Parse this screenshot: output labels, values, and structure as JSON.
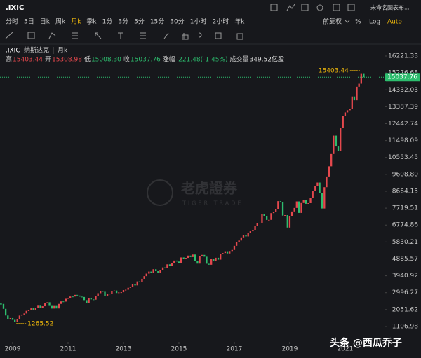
{
  "header": {
    "symbol": ".IXIC",
    "layout_name": "未命名图表布..."
  },
  "toolbar": {
    "periods": [
      "分时",
      "5日",
      "日k",
      "周k",
      "月k",
      "季k",
      "1分",
      "3分",
      "5分",
      "15分",
      "30分",
      "1小时",
      "2小时",
      "年k"
    ],
    "adjust": "前复权",
    "percent": "%",
    "log": "Log",
    "auto": "Auto"
  },
  "info": {
    "symbol": ".IXIC",
    "name": "纳斯达克",
    "period": "月k",
    "stats": [
      {
        "label": "高",
        "value": "15403.44",
        "color": "#e5484d"
      },
      {
        "label": "开",
        "value": "15308.98",
        "color": "#e5484d"
      },
      {
        "label": "低",
        "value": "15008.30",
        "color": "#2dbd6e"
      },
      {
        "label": "收",
        "value": "15037.76",
        "color": "#2dbd6e"
      },
      {
        "label": "涨幅",
        "value": "-221.48(-1.45%)",
        "color": "#2dbd6e"
      },
      {
        "label": "成交量",
        "value": "349.52亿股",
        "color": "#d8d8d8"
      }
    ]
  },
  "watermark": {
    "name": "老虎證券",
    "sub": "TIGER TRADE"
  },
  "credit": "头条 @西瓜乔子",
  "chart_data": {
    "type": "candlestick",
    "up_color": "#e5484d",
    "down_color": "#2dbd6e",
    "x": [
      2008.58,
      2008.67,
      2008.75,
      2008.83,
      2008.92,
      2009,
      2009.08,
      2009.17,
      2009.25,
      2009.33,
      2009.42,
      2009.5,
      2009.58,
      2009.67,
      2009.75,
      2009.83,
      2009.92,
      2010,
      2010.08,
      2010.17,
      2010.25,
      2010.33,
      2010.42,
      2010.5,
      2010.58,
      2010.67,
      2010.75,
      2010.83,
      2010.92,
      2011,
      2011.08,
      2011.17,
      2011.25,
      2011.33,
      2011.42,
      2011.5,
      2011.58,
      2011.67,
      2011.75,
      2011.83,
      2011.92,
      2012,
      2012.08,
      2012.17,
      2012.25,
      2012.33,
      2012.42,
      2012.5,
      2012.58,
      2012.67,
      2012.75,
      2012.83,
      2012.92,
      2013,
      2013.08,
      2013.17,
      2013.25,
      2013.33,
      2013.42,
      2013.5,
      2013.58,
      2013.67,
      2013.75,
      2013.83,
      2013.92,
      2014,
      2014.08,
      2014.17,
      2014.25,
      2014.33,
      2014.42,
      2014.5,
      2014.58,
      2014.67,
      2014.75,
      2014.83,
      2014.92,
      2015,
      2015.08,
      2015.17,
      2015.25,
      2015.33,
      2015.42,
      2015.5,
      2015.58,
      2015.67,
      2015.75,
      2015.83,
      2015.92,
      2016,
      2016.08,
      2016.17,
      2016.25,
      2016.33,
      2016.42,
      2016.5,
      2016.58,
      2016.67,
      2016.75,
      2016.83,
      2016.92,
      2017,
      2017.08,
      2017.17,
      2017.25,
      2017.33,
      2017.42,
      2017.5,
      2017.58,
      2017.67,
      2017.75,
      2017.83,
      2017.92,
      2018,
      2018.08,
      2018.17,
      2018.25,
      2018.33,
      2018.42,
      2018.5,
      2018.58,
      2018.67,
      2018.75,
      2018.83,
      2018.92,
      2019,
      2019.08,
      2019.17,
      2019.25,
      2019.33,
      2019.42,
      2019.5,
      2019.58,
      2019.67,
      2019.75,
      2019.83,
      2019.92,
      2020,
      2020.08,
      2020.17,
      2020.25,
      2020.33,
      2020.42,
      2020.5,
      2020.58,
      2020.67,
      2020.75,
      2020.83,
      2020.92,
      2021,
      2021.08,
      2021.17,
      2021.25,
      2021.33,
      2021.42,
      2021.5,
      2021.58,
      2021.67
    ],
    "close": [
      2367,
      2092,
      1721,
      1536,
      1577,
      1476,
      1378,
      1529,
      1717,
      1774,
      1835,
      1979,
      2009,
      2122,
      2045,
      2145,
      2269,
      2147,
      2238,
      2398,
      2461,
      2257,
      2109,
      2255,
      2114,
      2369,
      2507,
      2498,
      2653,
      2700,
      2782,
      2781,
      2874,
      2835,
      2774,
      2756,
      2579,
      2415,
      2684,
      2620,
      2605,
      2814,
      2967,
      3092,
      3046,
      2827,
      2935,
      2940,
      3067,
      3116,
      2977,
      3010,
      3020,
      3142,
      3160,
      3268,
      3329,
      3456,
      3403,
      3626,
      3590,
      3771,
      3920,
      4060,
      4177,
      4104,
      4308,
      4199,
      4115,
      4243,
      4408,
      4370,
      4580,
      4493,
      4631,
      4792,
      4736,
      4635,
      4964,
      4901,
      4941,
      5070,
      4987,
      5128,
      4777,
      4620,
      5054,
      5109,
      5007,
      4614,
      4558,
      4870,
      4775,
      4948,
      4843,
      5162,
      5213,
      5312,
      5189,
      5324,
      5383,
      5615,
      5825,
      5912,
      6048,
      6199,
      6140,
      6348,
      6429,
      6496,
      6728,
      6874,
      6903,
      7411,
      7273,
      7063,
      7066,
      7442,
      7510,
      7672,
      8110,
      8046,
      7306,
      7331,
      6635,
      7282,
      7533,
      7729,
      8095,
      7453,
      8006,
      8175,
      7963,
      7999,
      8292,
      8665,
      8973,
      9151,
      8567,
      7700,
      8890,
      9490,
      10059,
      10745,
      11775,
      11168,
      10912,
      12199,
      12888,
      13071,
      13192,
      13247,
      13962,
      13749,
      14504,
      14673,
      15259,
      15037.76
    ],
    "xlim": [
      2008.544,
      2022.42
    ],
    "xticks": [
      2009,
      2011,
      2013,
      2015,
      2017,
      2019,
      2021
    ],
    "ylim": [
      244,
      16809
    ],
    "yticks": [
      1106.98,
      2051.62,
      2996.27,
      3940.92,
      4885.57,
      5830.21,
      6774.86,
      7719.51,
      8664.15,
      {
        "value": 9608.8,
        "label": "9608.80"
      },
      10553.45,
      11498.09,
      12442.74,
      13387.39,
      14332.03,
      15276.68,
      16221.33
    ],
    "max_label": 15403.44,
    "min_label": 1265.52,
    "last_price": 15037.76
  }
}
